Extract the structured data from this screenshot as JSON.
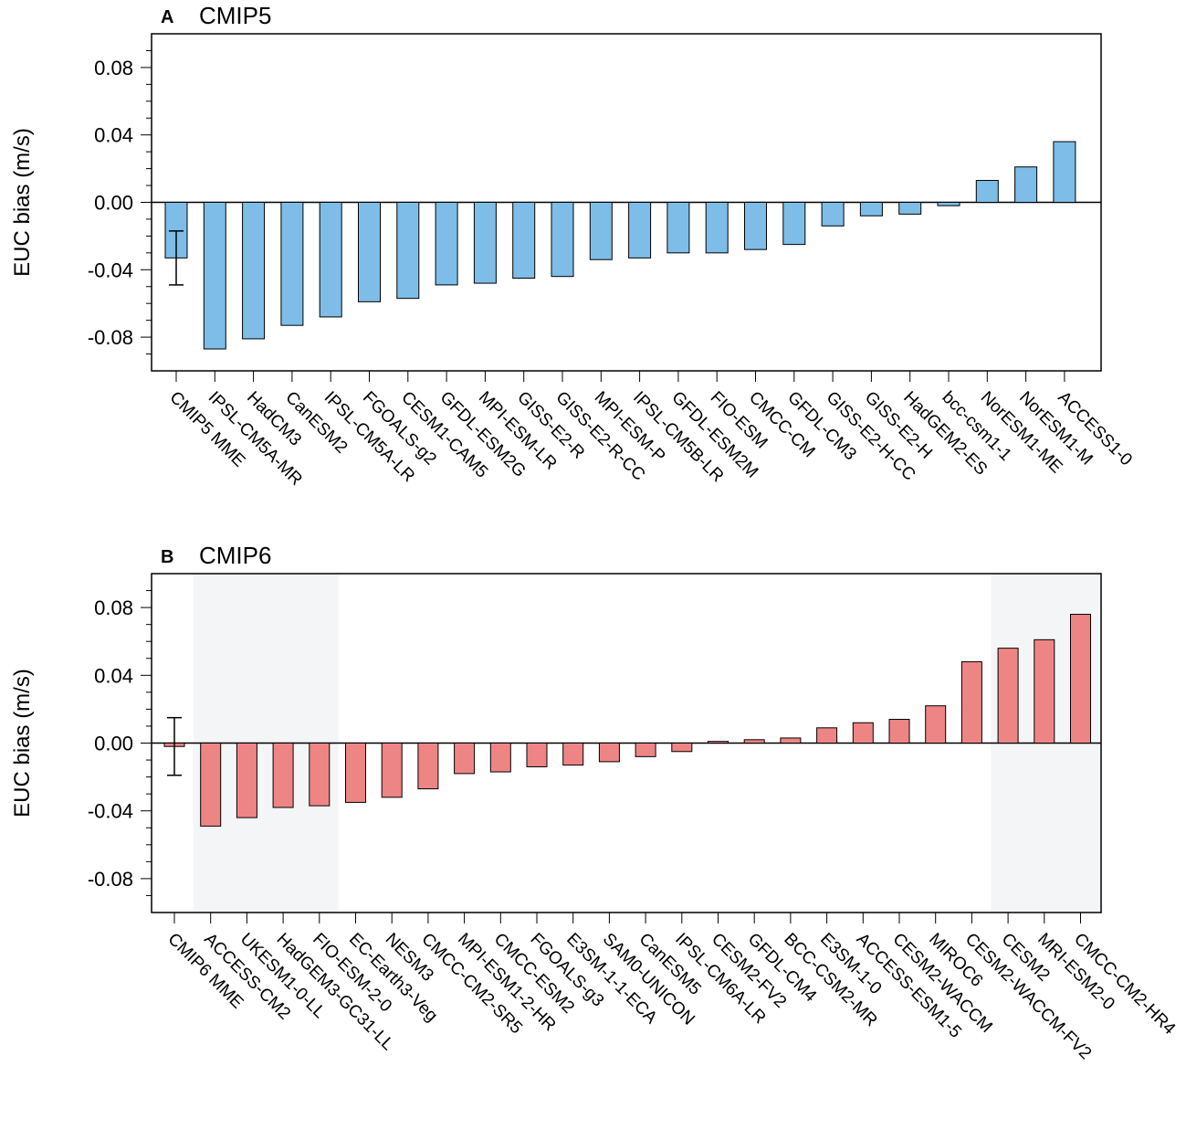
{
  "chart_data": [
    {
      "type": "bar",
      "panel_letter": "A",
      "title": "CMIP5",
      "ylabel": "EUC bias (m/s)",
      "xlabel": "",
      "ylim": [
        -0.1,
        0.1
      ],
      "yticks": [
        "0.08",
        "0.04",
        "0.00",
        "-0.04",
        "-0.08"
      ],
      "ytick_values": [
        0.08,
        0.04,
        0.0,
        -0.04,
        -0.08
      ],
      "bar_color": "#7dbde8",
      "shaded_regions": [],
      "mme_error": {
        "low": -0.049,
        "high": -0.017
      },
      "categories": [
        "CMIP5 MME",
        "IPSL-CM5A-MR",
        "HadCM3",
        "CanESM2",
        "IPSL-CM5A-LR",
        "FGOALS-g2",
        "CESM1-CAM5",
        "GFDL-ESM2G",
        "MPI-ESM-LR",
        "GISS-E2-R",
        "GISS-E2-R-CC",
        "MPI-ESM-P",
        "IPSL-CM5B-LR",
        "GFDL-ESM2M",
        "FIO-ESM",
        "CMCC-CM",
        "GFDL-CM3",
        "GISS-E2-H-CC",
        "GISS-E2-H",
        "HadGEM2-ES",
        "bcc-csm1-1",
        "NorESM1-ME",
        "NorESM1-M",
        "ACCESS1-0"
      ],
      "values": [
        -0.033,
        -0.087,
        -0.081,
        -0.073,
        -0.068,
        -0.059,
        -0.057,
        -0.049,
        -0.048,
        -0.045,
        -0.044,
        -0.034,
        -0.033,
        -0.03,
        -0.03,
        -0.028,
        -0.025,
        -0.014,
        -0.008,
        -0.007,
        -0.002,
        0.013,
        0.021,
        0.036
      ]
    },
    {
      "type": "bar",
      "panel_letter": "B",
      "title": "CMIP6",
      "ylabel": "EUC bias (m/s)",
      "xlabel": "",
      "ylim": [
        -0.1,
        0.1
      ],
      "yticks": [
        "0.08",
        "0.04",
        "0.00",
        "-0.04",
        "-0.08"
      ],
      "ytick_values": [
        0.08,
        0.04,
        0.0,
        -0.04,
        -0.08
      ],
      "bar_color": "#ee8585",
      "shaded_regions": [
        [
          1,
          4
        ],
        [
          23,
          26
        ]
      ],
      "mme_error": {
        "low": -0.019,
        "high": 0.015
      },
      "categories": [
        "CMIP6 MME",
        "ACCESS-CM2",
        "UKESM1-0-LL",
        "HadGEM3-GC31-LL",
        "FIO-ESM-2-0",
        "EC-Earth3-Veg",
        "NESM3",
        "CMCC-CM2-SR5",
        "MPI-ESM1-2-HR",
        "CMCC-ESM2",
        "FGOALS-g3",
        "E3SM-1-1-ECA",
        "SAM0-UNICON",
        "CanESM5",
        "IPSL-CM6A-LR",
        "CESM2-FV2",
        "GFDL-CM4",
        "BCC-CSM2-MR",
        "E3SM-1-0",
        "ACCESS-ESM1-5",
        "CESM2-WACCM",
        "MIROC6",
        "CESM2-WACCM-FV2",
        "CESM2",
        "MRI-ESM2-0",
        "CMCC-CM2-HR4"
      ],
      "values": [
        -0.002,
        -0.049,
        -0.044,
        -0.038,
        -0.037,
        -0.035,
        -0.032,
        -0.027,
        -0.018,
        -0.017,
        -0.014,
        -0.013,
        -0.011,
        -0.008,
        -0.005,
        0.001,
        0.002,
        0.003,
        0.009,
        0.012,
        0.014,
        0.022,
        0.048,
        0.056,
        0.061,
        0.076
      ]
    }
  ]
}
